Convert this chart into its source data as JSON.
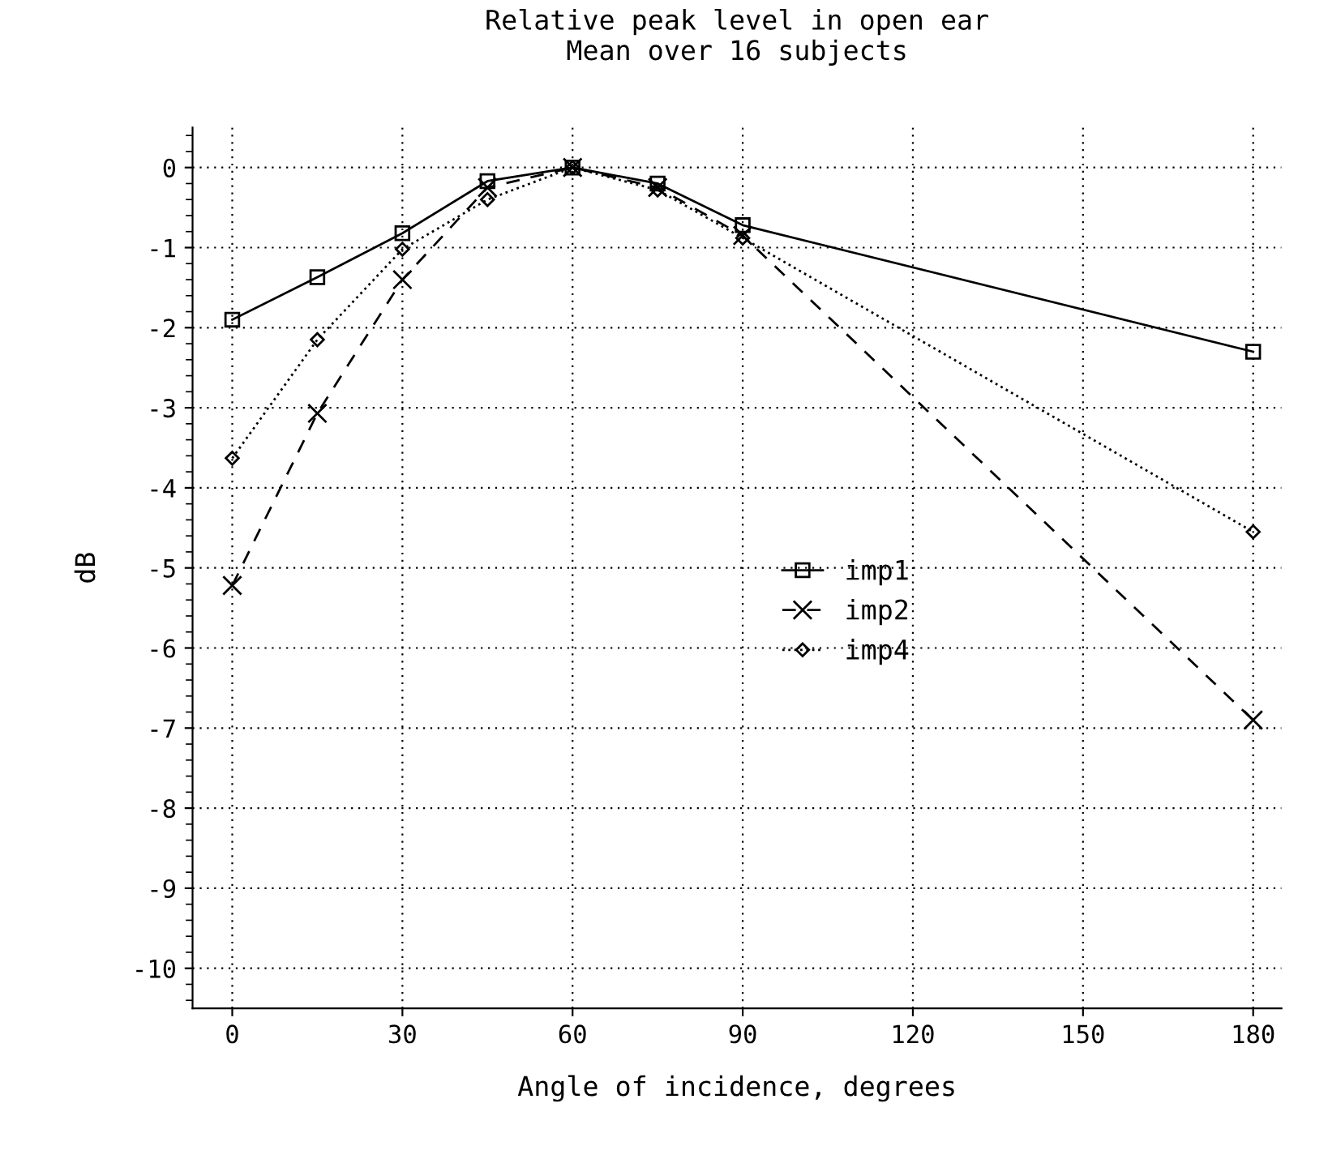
{
  "chart_data": {
    "type": "line",
    "title": "Relative peak level in open ear\nMean over 16 subjects",
    "xlabel": "Angle of incidence, degrees",
    "ylabel": "dB",
    "x": [
      0,
      15,
      30,
      45,
      60,
      75,
      90,
      180
    ],
    "series": [
      {
        "name": "imp1",
        "color": "#000000",
        "marker": "square",
        "line_style": "solid",
        "values": [
          -1.9,
          -1.37,
          -0.82,
          -0.17,
          0,
          -0.2,
          -0.72,
          -2.3
        ]
      },
      {
        "name": "imp2",
        "color": "#000000",
        "marker": "cross",
        "line_style": "dashed",
        "values": [
          -5.22,
          -3.07,
          -1.4,
          -0.25,
          0,
          -0.25,
          -0.85,
          -6.9
        ]
      },
      {
        "name": "imp4",
        "color": "#000000",
        "marker": "diamond",
        "line_style": "dotted",
        "values": [
          -3.63,
          -2.15,
          -1.02,
          -0.4,
          0,
          -0.28,
          -0.88,
          -4.55
        ]
      }
    ],
    "xlim": [
      -7,
      185
    ],
    "xticks": [
      0,
      30,
      60,
      90,
      120,
      150,
      180
    ],
    "ylim": [
      -10.5,
      0.5
    ],
    "yticks": [
      -10,
      -9,
      -8,
      -7,
      -6,
      -5,
      -4,
      -3,
      -2,
      -1,
      0
    ],
    "grid": true,
    "legend": "center"
  }
}
